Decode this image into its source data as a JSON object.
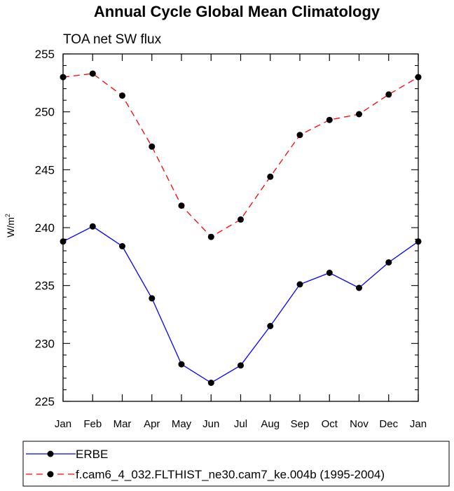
{
  "chart_data": {
    "type": "line",
    "title": "Annual Cycle Global Mean Climatology",
    "subtitle": "TOA net SW flux",
    "ylabel": "W/m",
    "ylabel_superscript": "2",
    "xlabel": "",
    "categories": [
      "Jan",
      "Feb",
      "Mar",
      "Apr",
      "May",
      "Jun",
      "Jul",
      "Aug",
      "Sep",
      "Oct",
      "Nov",
      "Dec",
      "Jan"
    ],
    "ylim": [
      225,
      255
    ],
    "yticks": [
      225,
      230,
      235,
      240,
      245,
      250,
      255
    ],
    "series": [
      {
        "name": "ERBE",
        "color": "#0000ff",
        "dash": "solid",
        "values": [
          238.8,
          240.1,
          238.4,
          233.9,
          228.2,
          226.6,
          228.1,
          231.5,
          235.1,
          236.1,
          234.8,
          237.0,
          238.8
        ]
      },
      {
        "name": "f.cam6_4_032.FLTHIST_ne30.cam7_ke.004b (1995-2004)",
        "color": "#ff0000",
        "dash": "dashed",
        "values": [
          253.0,
          253.3,
          251.4,
          247.0,
          241.9,
          239.2,
          240.7,
          244.4,
          248.0,
          249.3,
          249.8,
          251.5,
          253.0
        ]
      }
    ],
    "legend_position": "bottom"
  }
}
